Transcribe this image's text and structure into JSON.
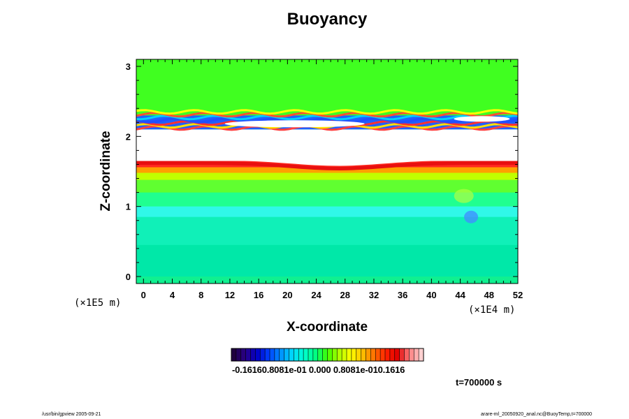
{
  "chart_data": {
    "type": "heatmap",
    "title": "Buoyancy",
    "xlabel": "X-coordinate",
    "ylabel": "Z-coordinate",
    "x_unit": "(×1E4 m)",
    "z_unit": "(×1E5 m)",
    "xlim": [
      -1,
      52
    ],
    "ylim": [
      -0.1,
      3.1
    ],
    "x_ticks": [
      "0",
      "4",
      "8",
      "12",
      "16",
      "20",
      "24",
      "28",
      "32",
      "36",
      "40",
      "44",
      "48",
      "52"
    ],
    "y_ticks": [
      "0",
      "1",
      "2",
      "3"
    ],
    "colorbar": {
      "range": [
        -0.1616,
        0.1616
      ],
      "tick_labels": "-0.16160.8081e-01 0.000 0.8081e-010.1616",
      "colors": [
        "#200040",
        "#2a0088",
        "#0000c8",
        "#0040ff",
        "#0090ff",
        "#00d8ff",
        "#00ffd0",
        "#00ff80",
        "#40ff00",
        "#b0ff00",
        "#ffff00",
        "#ffc000",
        "#ff7000",
        "#ff2000",
        "#e00000",
        "#ff8080",
        "#ffd0d0"
      ]
    },
    "layers": [
      {
        "z": [
          0.0,
          0.9
        ],
        "value": 0.0,
        "color": "#00f0a0"
      },
      {
        "z": [
          0.9,
          1.05
        ],
        "value": -0.03,
        "color": "#40ffff"
      },
      {
        "z": [
          1.05,
          1.35
        ],
        "value": 0.01,
        "color": "#30ff50"
      },
      {
        "z": [
          1.35,
          1.55
        ],
        "value": 0.07,
        "color": "#ffe000"
      },
      {
        "z": [
          1.55,
          1.65
        ],
        "value": 0.13,
        "color": "#ff2020"
      },
      {
        "z": [
          1.65,
          2.1
        ],
        "value": 0.2,
        "color": "#ffffff"
      },
      {
        "z": [
          2.1,
          2.3
        ],
        "value": -0.1,
        "color": "#2060ff"
      },
      {
        "z": [
          2.3,
          3.1
        ],
        "value": 0.0,
        "color": "#40ff20"
      }
    ],
    "time_label": "t=700000 s"
  },
  "footer": {
    "left": "/usr/bin/gpview 2005-09-21",
    "right": "arare-ml_20050920_anal.nc@BuoyTemp,t=700000"
  }
}
